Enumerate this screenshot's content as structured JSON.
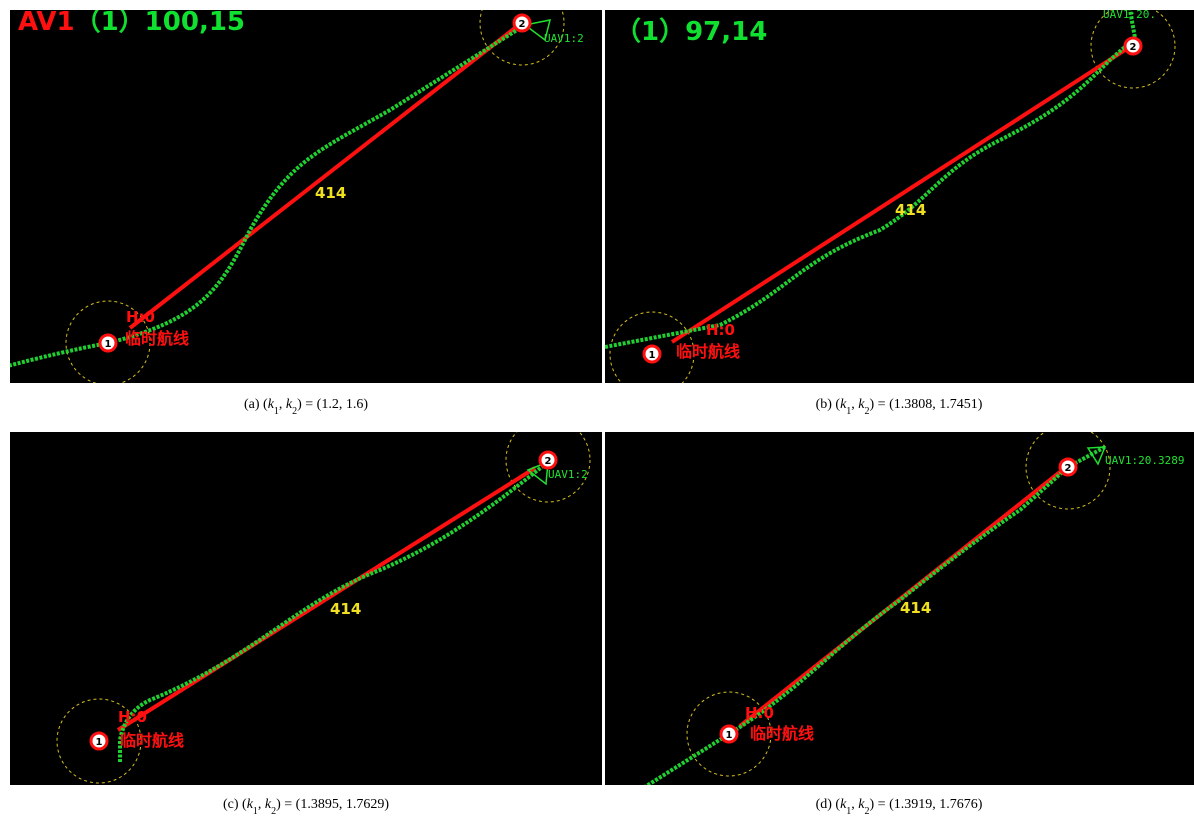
{
  "panels": [
    {
      "header": [
        {
          "text": "AV1",
          "color": "#ff1010"
        },
        {
          "text": "（1）100,15",
          "color": "#10e030"
        }
      ],
      "distance": "414",
      "route_label": "临时航线",
      "height_label": "H:0",
      "uav_label": "UAV1:2",
      "waypoints": [
        "1",
        "2"
      ],
      "caption": [
        {
          "text": "(a) ("
        },
        {
          "text": "k",
          "style": "italic"
        },
        {
          "text": "1",
          "style": "sub"
        },
        {
          "text": ", "
        },
        {
          "text": "k",
          "style": "italic"
        },
        {
          "text": "2",
          "style": "sub"
        },
        {
          "text": ") = (1.2, 1.6)"
        }
      ]
    },
    {
      "header": [
        {
          "text": "（1）97,14",
          "color": "#10e030"
        }
      ],
      "distance": "414",
      "route_label": "临时航线",
      "height_label": "H:0",
      "uav_label": "UAV1:20.",
      "waypoints": [
        "1",
        "2"
      ],
      "caption": [
        {
          "text": "(b) ("
        },
        {
          "text": "k",
          "style": "italic"
        },
        {
          "text": "1",
          "style": "sub"
        },
        {
          "text": ", "
        },
        {
          "text": "k",
          "style": "italic"
        },
        {
          "text": "2",
          "style": "sub"
        },
        {
          "text": ") = (1.3808, 1.7451)"
        }
      ]
    },
    {
      "distance": "414",
      "route_label": "临时航线",
      "height_label": "H:0",
      "uav_label": "UAV1:2",
      "waypoints": [
        "1",
        "2"
      ],
      "caption": [
        {
          "text": "(c) ("
        },
        {
          "text": "k",
          "style": "italic"
        },
        {
          "text": "1",
          "style": "sub"
        },
        {
          "text": ", "
        },
        {
          "text": "k",
          "style": "italic"
        },
        {
          "text": "2",
          "style": "sub"
        },
        {
          "text": ") = (1.3895, 1.7629)"
        }
      ]
    },
    {
      "distance": "414",
      "route_label": "临时航线",
      "height_label": "H:0",
      "uav_label": "UAV1:20.3289",
      "waypoints": [
        "1",
        "2"
      ],
      "caption": [
        {
          "text": "(d) ("
        },
        {
          "text": "k",
          "style": "italic"
        },
        {
          "text": "1",
          "style": "sub"
        },
        {
          "text": ", "
        },
        {
          "text": "k",
          "style": "italic"
        },
        {
          "text": "2",
          "style": "sub"
        },
        {
          "text": ") = (1.3919, 1.7676)"
        }
      ]
    }
  ]
}
